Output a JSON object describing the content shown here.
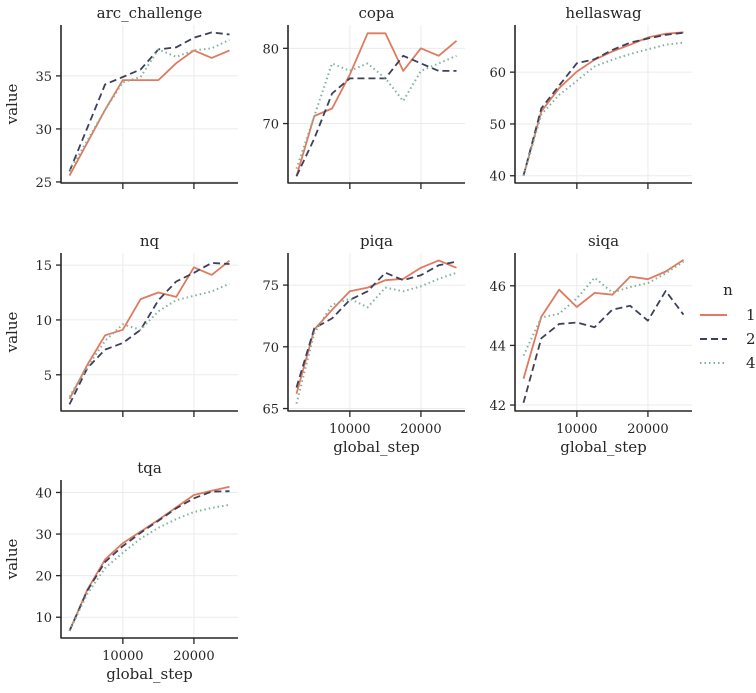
{
  "chart_data": {
    "type": "line",
    "xlabel": "global_step",
    "ylabel": "value",
    "xlim": [
      1300,
      26200
    ],
    "xticks": [
      10000,
      20000
    ],
    "x": [
      2500,
      5000,
      7500,
      10000,
      12500,
      15000,
      17500,
      20000,
      22500,
      25000
    ],
    "legend": {
      "title": "n",
      "placement": "right",
      "entries": [
        "1",
        "2",
        "4"
      ]
    },
    "colors": {
      "1": "#e07a5f",
      "2": "#3d405b",
      "4": "#81b29a"
    },
    "grid": true,
    "panels": [
      {
        "title": "arc_challenge",
        "ylim": [
          24.9,
          39.8
        ],
        "yticks": [
          25,
          30,
          35
        ],
        "series": [
          {
            "name": "1",
            "values": [
              25.6,
              28.7,
              31.8,
              34.6,
              34.6,
              34.6,
              36.2,
              37.4,
              36.7,
              37.4
            ]
          },
          {
            "name": "2",
            "values": [
              26.0,
              30.1,
              34.2,
              34.9,
              35.6,
              37.5,
              37.7,
              38.6,
              39.1,
              38.9
            ]
          },
          {
            "name": "4",
            "values": [
              26.1,
              28.9,
              31.8,
              34.4,
              34.9,
              37.5,
              36.8,
              37.4,
              37.6,
              38.4
            ]
          }
        ]
      },
      {
        "title": "copa",
        "ylim": [
          62.1,
          83.1
        ],
        "yticks": [
          70,
          80
        ],
        "series": [
          {
            "name": "1",
            "values": [
              63,
              71,
              72,
              76.5,
              82,
              82,
              77,
              80,
              79,
              81
            ]
          },
          {
            "name": "2",
            "values": [
              63,
              68,
              74,
              76,
              76,
              76,
              79,
              78,
              77,
              77
            ]
          },
          {
            "name": "4",
            "values": [
              64,
              71,
              78,
              77,
              78,
              76,
              73,
              77,
              78,
              79
            ]
          }
        ]
      },
      {
        "title": "hellaswag",
        "ylim": [
          38.6,
          69.1
        ],
        "yticks": [
          40,
          50,
          60
        ],
        "series": [
          {
            "name": "1",
            "values": [
              40,
              52.4,
              56.9,
              60.1,
              62.4,
              64.0,
              65.3,
              66.7,
              67.4,
              67.7
            ]
          },
          {
            "name": "2",
            "values": [
              40,
              53.0,
              57.4,
              61.7,
              62.5,
              64.3,
              65.7,
              66.5,
              67.2,
              67.6
            ]
          },
          {
            "name": "4",
            "values": [
              40,
              51.8,
              55.6,
              58.3,
              61.1,
              62.4,
              63.5,
              64.4,
              65.3,
              65.7
            ]
          }
        ]
      },
      {
        "title": "nq",
        "ylim": [
          1.7,
          16.1
        ],
        "yticks": [
          5,
          10,
          15
        ],
        "series": [
          {
            "name": "1",
            "values": [
              2.8,
              5.9,
              8.6,
              9.1,
              11.9,
              12.5,
              12.1,
              14.8,
              14.1,
              15.4
            ]
          },
          {
            "name": "2",
            "values": [
              2.3,
              5.6,
              7.3,
              7.9,
              9.1,
              11.8,
              13.5,
              14.3,
              15.2,
              15.1
            ]
          },
          {
            "name": "4",
            "values": [
              3.0,
              5.7,
              8.1,
              9.6,
              9.1,
              10.8,
              11.8,
              12.2,
              12.6,
              13.3
            ]
          }
        ]
      },
      {
        "title": "piqa",
        "ylim": [
          64.8,
          77.6
        ],
        "yticks": [
          65,
          70,
          75
        ],
        "series": [
          {
            "name": "1",
            "values": [
              66.2,
              71.4,
              73.0,
              74.5,
              74.8,
              75.4,
              75.5,
              76.4,
              77.0,
              76.4
            ]
          },
          {
            "name": "2",
            "values": [
              66.7,
              71.5,
              72.3,
              73.8,
              74.5,
              76.0,
              75.4,
              75.8,
              76.6,
              76.9
            ]
          },
          {
            "name": "4",
            "values": [
              65.4,
              71.1,
              73.4,
              73.9,
              73.2,
              74.8,
              74.5,
              74.9,
              75.5,
              76.0
            ]
          }
        ]
      },
      {
        "title": "siqa",
        "ylim": [
          41.8,
          47.1
        ],
        "yticks": [
          42,
          44,
          46
        ],
        "series": [
          {
            "name": "1",
            "values": [
              42.88,
              44.96,
              45.87,
              45.29,
              45.76,
              45.7,
              46.31,
              46.22,
              46.48,
              46.87
            ]
          },
          {
            "name": "2",
            "values": [
              42.08,
              44.24,
              44.72,
              44.77,
              44.61,
              45.2,
              45.33,
              44.83,
              45.83,
              45.03
            ]
          },
          {
            "name": "4",
            "values": [
              43.66,
              44.94,
              45.06,
              45.58,
              46.27,
              45.77,
              45.96,
              46.09,
              46.42,
              46.81
            ]
          }
        ]
      },
      {
        "title": "tqa",
        "ylim": [
          5,
          43
        ],
        "yticks": [
          10,
          20,
          30,
          40
        ],
        "series": [
          {
            "name": "1",
            "values": [
              6.7,
              16.6,
              23.9,
              27.8,
              30.6,
              33.4,
              36.4,
              39.4,
              40.4,
              41.4
            ]
          },
          {
            "name": "2",
            "values": [
              6.7,
              16.4,
              23.3,
              27.1,
              30.3,
              33.2,
              36.2,
              38.6,
              40.2,
              40.3
            ]
          },
          {
            "name": "4",
            "values": [
              6.7,
              15.6,
              21.8,
              25.5,
              28.9,
              31.5,
              33.6,
              35.3,
              36.3,
              37.0
            ]
          }
        ]
      }
    ]
  }
}
